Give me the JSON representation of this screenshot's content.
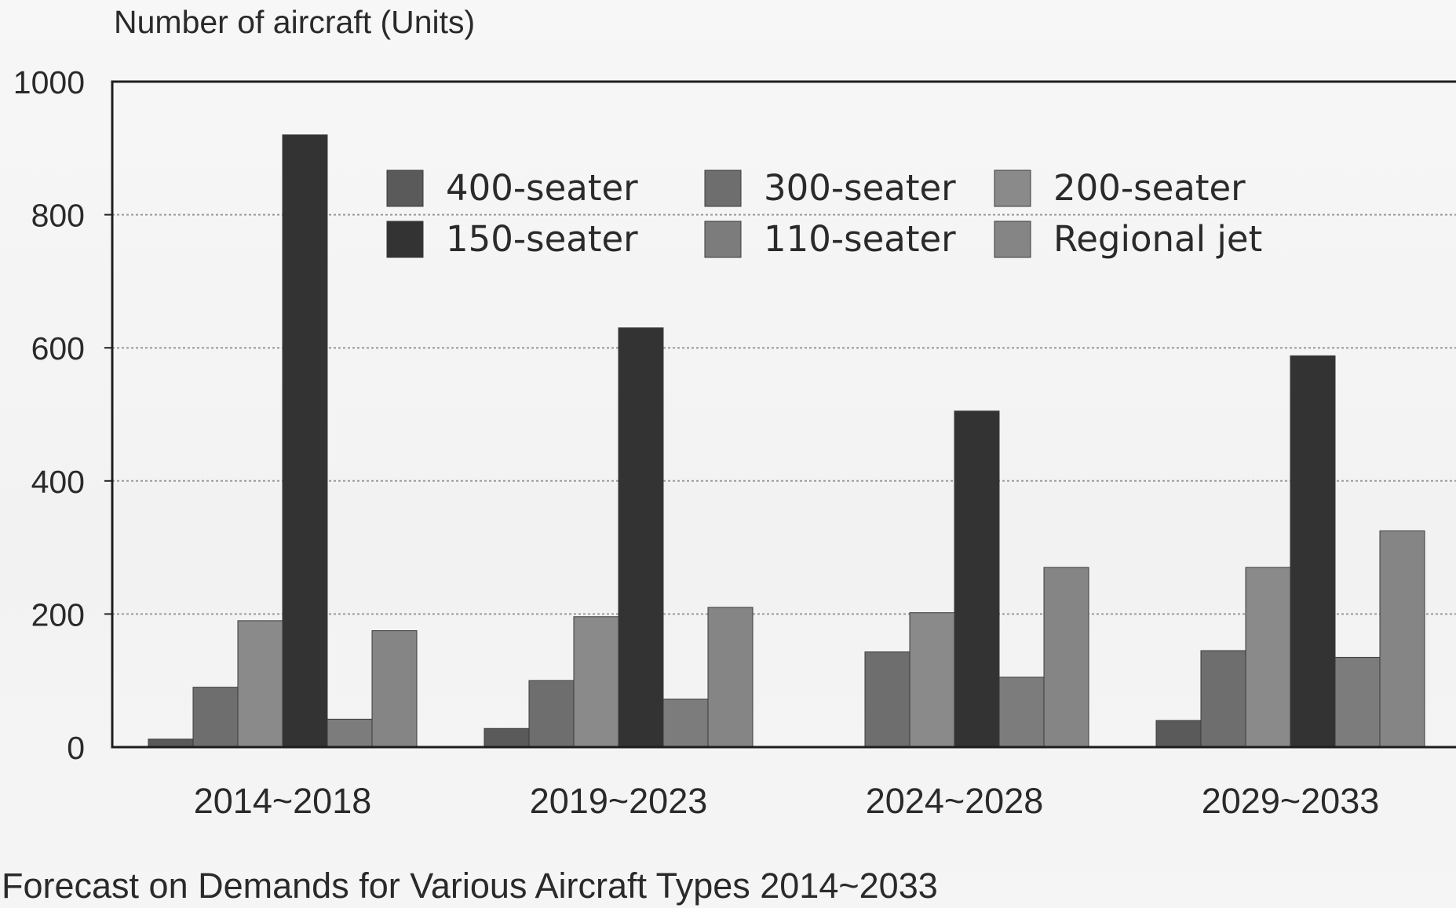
{
  "chart_data": {
    "type": "bar",
    "title": "Forecast on Demands for Various Aircraft Types 2014~2033",
    "ylabel": "Number of aircraft (Units)",
    "xlabel": "",
    "ylim": [
      0,
      1000
    ],
    "yticks": [
      0,
      200,
      400,
      600,
      800,
      1000
    ],
    "grid": true,
    "legend_position": "top",
    "categories": [
      "2014~2018",
      "2019~2023",
      "2024~2028",
      "2029~2033"
    ],
    "series": [
      {
        "name": "400-seater",
        "color": "#5a5a5a",
        "values": [
          12,
          28,
          0,
          40
        ]
      },
      {
        "name": "300-seater",
        "color": "#6e6e6e",
        "values": [
          90,
          100,
          143,
          145
        ]
      },
      {
        "name": "200-seater",
        "color": "#8a8a8a",
        "values": [
          190,
          196,
          202,
          270
        ]
      },
      {
        "name": "150-seater",
        "color": "#333333",
        "values": [
          920,
          630,
          505,
          588
        ]
      },
      {
        "name": "110-seater",
        "color": "#7c7c7c",
        "values": [
          42,
          72,
          105,
          135
        ]
      },
      {
        "name": "Regional jet",
        "color": "#858585",
        "values": [
          175,
          210,
          270,
          325
        ]
      }
    ]
  }
}
